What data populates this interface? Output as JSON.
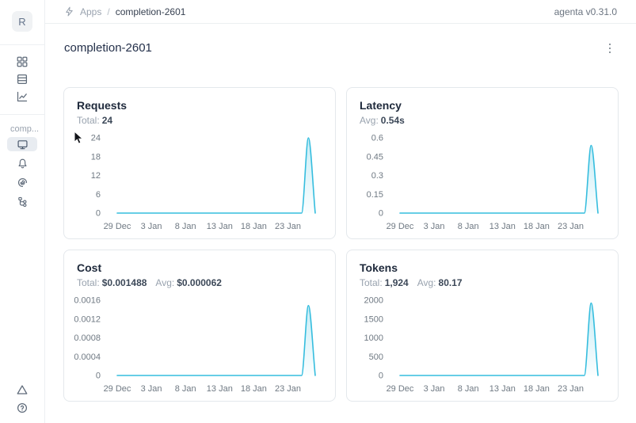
{
  "topbar": {
    "breadcrumb": {
      "section": "Apps",
      "separator": "/",
      "current": "completion-2601"
    },
    "version": "agenta v0.31.0"
  },
  "sidebar": {
    "avatar_letter": "R",
    "nav_top_icons": [
      "apps-grid-icon",
      "list-icon",
      "line-chart-icon"
    ],
    "project_label": "comp...",
    "project_icons": [
      "monitor-icon",
      "bell-icon",
      "spiral-icon",
      "tree-icon"
    ],
    "selected_icon": "monitor-icon",
    "bottom_icons": [
      "alert-triangle-icon",
      "help-icon"
    ]
  },
  "page": {
    "title": "completion-2601"
  },
  "cards": [
    {
      "title": "Requests",
      "stats": [
        {
          "label": "Total:",
          "value": "24"
        }
      ]
    },
    {
      "title": "Latency",
      "stats": [
        {
          "label": "Avg:",
          "value": "0.54s"
        }
      ]
    },
    {
      "title": "Cost",
      "stats": [
        {
          "label": "Total:",
          "value": "$0.001488"
        },
        {
          "label": "Avg:",
          "value": "$0.000062"
        }
      ]
    },
    {
      "title": "Tokens",
      "stats": [
        {
          "label": "Total:",
          "value": "1,924"
        },
        {
          "label": "Avg:",
          "value": "80.17"
        }
      ]
    }
  ],
  "colors": {
    "accent": "#35bdde",
    "axis_text": "#6f7983",
    "card_border": "#e4e8ec"
  },
  "chart_data": [
    {
      "type": "area",
      "title": "Requests",
      "x": [
        "29 Dec",
        "30 Dec",
        "31 Dec",
        "1 Jan",
        "2 Jan",
        "3 Jan",
        "4 Jan",
        "5 Jan",
        "6 Jan",
        "7 Jan",
        "8 Jan",
        "9 Jan",
        "10 Jan",
        "11 Jan",
        "12 Jan",
        "13 Jan",
        "14 Jan",
        "15 Jan",
        "16 Jan",
        "17 Jan",
        "18 Jan",
        "19 Jan",
        "20 Jan",
        "21 Jan",
        "22 Jan",
        "23 Jan",
        "24 Jan",
        "25 Jan",
        "26 Jan",
        "27 Jan"
      ],
      "values": [
        0,
        0,
        0,
        0,
        0,
        0,
        0,
        0,
        0,
        0,
        0,
        0,
        0,
        0,
        0,
        0,
        0,
        0,
        0,
        0,
        0,
        0,
        0,
        0,
        0,
        0,
        0,
        0,
        24,
        0
      ],
      "x_tick_labels": [
        "29 Dec",
        "3 Jan",
        "8 Jan",
        "13 Jan",
        "18 Jan",
        "23 Jan"
      ],
      "x_tick_indices": [
        0,
        5,
        10,
        15,
        20,
        25
      ],
      "y_ticks": [
        0,
        6,
        12,
        18,
        24
      ],
      "y_tick_labels": [
        "0",
        "6",
        "12",
        "18",
        "24"
      ],
      "ylim": [
        0,
        24
      ],
      "grid": false,
      "legend": false,
      "line_color": "#35bdde"
    },
    {
      "type": "area",
      "title": "Latency",
      "x": [
        "29 Dec",
        "30 Dec",
        "31 Dec",
        "1 Jan",
        "2 Jan",
        "3 Jan",
        "4 Jan",
        "5 Jan",
        "6 Jan",
        "7 Jan",
        "8 Jan",
        "9 Jan",
        "10 Jan",
        "11 Jan",
        "12 Jan",
        "13 Jan",
        "14 Jan",
        "15 Jan",
        "16 Jan",
        "17 Jan",
        "18 Jan",
        "19 Jan",
        "20 Jan",
        "21 Jan",
        "22 Jan",
        "23 Jan",
        "24 Jan",
        "25 Jan",
        "26 Jan",
        "27 Jan"
      ],
      "values": [
        0,
        0,
        0,
        0,
        0,
        0,
        0,
        0,
        0,
        0,
        0,
        0,
        0,
        0,
        0,
        0,
        0,
        0,
        0,
        0,
        0,
        0,
        0,
        0,
        0,
        0,
        0,
        0,
        0.54,
        0
      ],
      "x_tick_labels": [
        "29 Dec",
        "3 Jan",
        "8 Jan",
        "13 Jan",
        "18 Jan",
        "23 Jan"
      ],
      "x_tick_indices": [
        0,
        5,
        10,
        15,
        20,
        25
      ],
      "y_ticks": [
        0,
        0.15,
        0.3,
        0.45,
        0.6
      ],
      "y_tick_labels": [
        "0",
        "0.15",
        "0.3",
        "0.45",
        "0.6"
      ],
      "ylim": [
        0,
        0.6
      ],
      "grid": false,
      "legend": false,
      "line_color": "#35bdde"
    },
    {
      "type": "area",
      "title": "Cost",
      "x": [
        "29 Dec",
        "30 Dec",
        "31 Dec",
        "1 Jan",
        "2 Jan",
        "3 Jan",
        "4 Jan",
        "5 Jan",
        "6 Jan",
        "7 Jan",
        "8 Jan",
        "9 Jan",
        "10 Jan",
        "11 Jan",
        "12 Jan",
        "13 Jan",
        "14 Jan",
        "15 Jan",
        "16 Jan",
        "17 Jan",
        "18 Jan",
        "19 Jan",
        "20 Jan",
        "21 Jan",
        "22 Jan",
        "23 Jan",
        "24 Jan",
        "25 Jan",
        "26 Jan",
        "27 Jan"
      ],
      "values": [
        0,
        0,
        0,
        0,
        0,
        0,
        0,
        0,
        0,
        0,
        0,
        0,
        0,
        0,
        0,
        0,
        0,
        0,
        0,
        0,
        0,
        0,
        0,
        0,
        0,
        0,
        0,
        0,
        0.001488,
        0
      ],
      "x_tick_labels": [
        "29 Dec",
        "3 Jan",
        "8 Jan",
        "13 Jan",
        "18 Jan",
        "23 Jan"
      ],
      "x_tick_indices": [
        0,
        5,
        10,
        15,
        20,
        25
      ],
      "y_ticks": [
        0,
        0.0004,
        0.0008,
        0.0012,
        0.0016
      ],
      "y_tick_labels": [
        "0",
        "0.0004",
        "0.0008",
        "0.0012",
        "0.0016"
      ],
      "ylim": [
        0,
        0.0016
      ],
      "grid": false,
      "legend": false,
      "line_color": "#35bdde"
    },
    {
      "type": "area",
      "title": "Tokens",
      "x": [
        "29 Dec",
        "30 Dec",
        "31 Dec",
        "1 Jan",
        "2 Jan",
        "3 Jan",
        "4 Jan",
        "5 Jan",
        "6 Jan",
        "7 Jan",
        "8 Jan",
        "9 Jan",
        "10 Jan",
        "11 Jan",
        "12 Jan",
        "13 Jan",
        "14 Jan",
        "15 Jan",
        "16 Jan",
        "17 Jan",
        "18 Jan",
        "19 Jan",
        "20 Jan",
        "21 Jan",
        "22 Jan",
        "23 Jan",
        "24 Jan",
        "25 Jan",
        "26 Jan",
        "27 Jan"
      ],
      "values": [
        0,
        0,
        0,
        0,
        0,
        0,
        0,
        0,
        0,
        0,
        0,
        0,
        0,
        0,
        0,
        0,
        0,
        0,
        0,
        0,
        0,
        0,
        0,
        0,
        0,
        0,
        0,
        0,
        1924,
        0
      ],
      "x_tick_labels": [
        "29 Dec",
        "3 Jan",
        "8 Jan",
        "13 Jan",
        "18 Jan",
        "23 Jan"
      ],
      "x_tick_indices": [
        0,
        5,
        10,
        15,
        20,
        25
      ],
      "y_ticks": [
        0,
        500,
        1000,
        1500,
        2000
      ],
      "y_tick_labels": [
        "0",
        "500",
        "1000",
        "1500",
        "2000"
      ],
      "ylim": [
        0,
        2000
      ],
      "grid": false,
      "legend": false,
      "line_color": "#35bdde"
    }
  ]
}
